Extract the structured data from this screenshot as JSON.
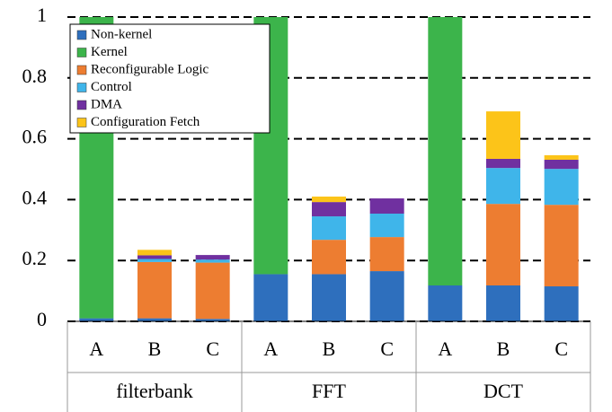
{
  "chart_data": {
    "type": "stacked-bar",
    "categories": [
      "A",
      "B",
      "C",
      "A",
      "B",
      "C",
      "A",
      "B",
      "C"
    ],
    "groups": [
      "filterbank",
      "FFT",
      "DCT"
    ],
    "ylim": [
      0,
      1
    ],
    "yticks": [
      0,
      0.2,
      0.4,
      0.6,
      0.8,
      1
    ],
    "grid": true,
    "legend": "upper-left",
    "series": [
      {
        "name": "Non-kernel",
        "color": "#2e6fbd",
        "values": [
          0.01,
          0.01,
          0.008,
          0.155,
          0.155,
          0.165,
          0.118,
          0.118,
          0.115
        ]
      },
      {
        "name": "Kernel",
        "color": "#3cb44b",
        "values": [
          0.99,
          0,
          0,
          0.845,
          0,
          0,
          0.882,
          0,
          0
        ]
      },
      {
        "name": "Reconfigurable Logic",
        "color": "#ed7d31",
        "values": [
          0,
          0.185,
          0.185,
          0,
          0.113,
          0.112,
          0,
          0.268,
          0.268
        ]
      },
      {
        "name": "Control",
        "color": "#3fb5ea",
        "values": [
          0,
          0.01,
          0.01,
          0,
          0.077,
          0.077,
          0,
          0.118,
          0.118
        ]
      },
      {
        "name": "DMA",
        "color": "#7030a0",
        "values": [
          0,
          0.012,
          0.015,
          0,
          0.047,
          0.05,
          0,
          0.03,
          0.03
        ]
      },
      {
        "name": "Configuration Fetch",
        "color": "#fcc419",
        "values": [
          0,
          0.018,
          0,
          0,
          0.018,
          0,
          0,
          0.156,
          0.015
        ]
      }
    ]
  }
}
